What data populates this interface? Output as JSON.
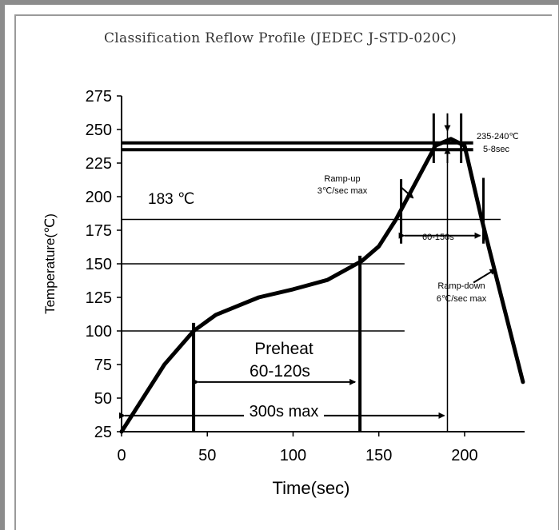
{
  "title": "Classification Reflow Profile (JEDEC J-STD-020C)",
  "chart_data": {
    "type": "line",
    "title": "Classification Reflow Profile (JEDEC J-STD-020C)",
    "xlabel": "Time(sec)",
    "ylabel": "Temperature(℃)",
    "xlim": [
      0,
      235
    ],
    "ylim": [
      25,
      275
    ],
    "x_ticks": [
      "0",
      "50",
      "100",
      "150",
      "200"
    ],
    "y_ticks": [
      "25",
      "50",
      "75",
      "100",
      "125",
      "150",
      "175",
      "200",
      "225",
      "250",
      "275"
    ],
    "grid": false,
    "series": [
      {
        "values": [
          [
            0,
            25
          ],
          [
            25,
            75
          ],
          [
            42,
            100
          ],
          [
            55,
            112
          ],
          [
            80,
            125
          ],
          [
            100,
            131
          ],
          [
            120,
            138
          ],
          [
            140,
            152
          ],
          [
            150,
            163
          ],
          [
            160,
            183
          ],
          [
            183,
            238
          ],
          [
            192,
            243
          ],
          [
            200,
            238
          ],
          [
            210,
            183
          ],
          [
            234,
            62
          ]
        ]
      }
    ],
    "reference_lines": [
      {
        "temp": 240,
        "from": 0,
        "to": 205
      },
      {
        "temp": 235,
        "from": 0,
        "to": 205
      },
      {
        "temp": 183,
        "from": 0,
        "to": 221
      },
      {
        "temp": 150,
        "from": 0,
        "to": 165
      },
      {
        "temp": 100,
        "from": 0,
        "to": 165
      }
    ],
    "annotations": {
      "peak": "235-240℃",
      "peak_time": "5-8sec",
      "ramp_up_1": "Ramp-up",
      "ramp_up_2": "3℃/sec max",
      "liquidus": "183 ℃",
      "tal": "60-150s",
      "ramp_down_1": "Ramp-down",
      "ramp_down_2": "6℃/sec max",
      "preheat_1": "Preheat",
      "preheat_2": "60-120s",
      "total": "300s max"
    }
  }
}
